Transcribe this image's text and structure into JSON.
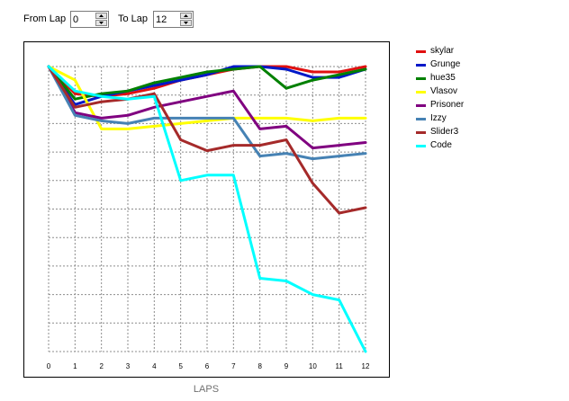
{
  "controls": {
    "from_label": "From Lap",
    "from_value": "0",
    "to_label": "To Lap",
    "to_value": "12"
  },
  "chart_data": {
    "type": "line",
    "title": "",
    "xlabel": "LAPS",
    "ylabel": "",
    "x": [
      0,
      1,
      2,
      3,
      4,
      5,
      6,
      7,
      8,
      9,
      10,
      11,
      12
    ],
    "xlim": [
      0,
      12
    ],
    "ylim": [
      0,
      10.5
    ],
    "y_inverted": true,
    "grid": true,
    "legend_position": "right",
    "series": [
      {
        "name": "skylar",
        "color": "#e01010",
        "values": [
          0.0,
          1.0,
          1.1,
          1.0,
          0.8,
          0.5,
          0.3,
          0.1,
          0.0,
          0.0,
          0.2,
          0.2,
          0.0
        ]
      },
      {
        "name": "Grunge",
        "color": "#0018c8",
        "values": [
          0.0,
          1.4,
          1.1,
          0.9,
          0.7,
          0.5,
          0.3,
          0.0,
          0.0,
          0.1,
          0.4,
          0.4,
          0.1
        ]
      },
      {
        "name": "hue35",
        "color": "#008000",
        "values": [
          0.0,
          1.2,
          1.0,
          0.9,
          0.6,
          0.4,
          0.2,
          0.1,
          0.0,
          0.8,
          0.5,
          0.3,
          0.1
        ]
      },
      {
        "name": "Vlasov",
        "color": "#ffff00",
        "values": [
          0.0,
          0.5,
          2.3,
          2.3,
          2.2,
          2.1,
          2.0,
          1.9,
          1.9,
          1.9,
          2.0,
          1.9,
          1.9
        ]
      },
      {
        "name": "Prisoner",
        "color": "#800080",
        "values": [
          0.0,
          1.7,
          1.9,
          1.8,
          1.5,
          1.3,
          1.1,
          0.9,
          2.3,
          2.2,
          3.0,
          2.9,
          2.8
        ]
      },
      {
        "name": "Izzy",
        "color": "#4682b4",
        "values": [
          0.0,
          1.8,
          2.0,
          2.1,
          1.9,
          1.9,
          1.9,
          1.9,
          3.3,
          3.2,
          3.4,
          3.3,
          3.2
        ]
      },
      {
        "name": "Slider3",
        "color": "#a52a2a",
        "values": [
          0.0,
          1.5,
          1.3,
          1.2,
          1.0,
          2.7,
          3.1,
          2.9,
          2.9,
          2.7,
          4.3,
          5.4,
          5.2
        ]
      },
      {
        "name": "Code",
        "color": "#00ffff",
        "values": [
          0.0,
          0.9,
          1.1,
          1.2,
          1.1,
          4.2,
          4.0,
          4.0,
          7.8,
          7.9,
          8.4,
          8.6,
          10.5
        ]
      }
    ]
  }
}
